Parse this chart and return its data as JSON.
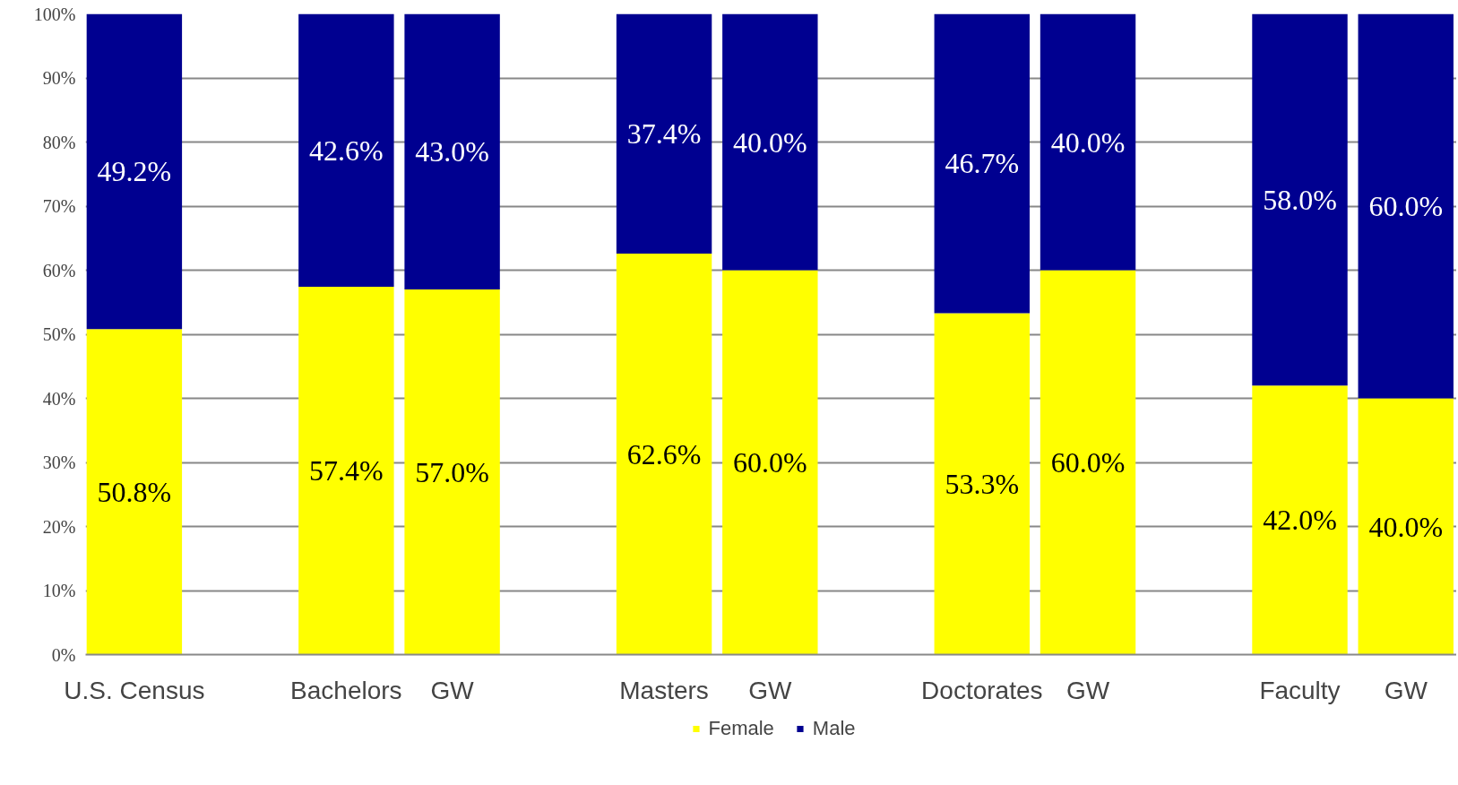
{
  "chart_data": {
    "type": "bar",
    "stacked": true,
    "categories": [
      "U.S. Census",
      null,
      "Bachelors",
      "GW",
      null,
      "Masters",
      "GW",
      null,
      "Doctorates",
      "GW",
      null,
      "Faculty",
      "GW"
    ],
    "series": [
      {
        "name": "Female",
        "color": "#ffff00",
        "values": [
          50.8,
          null,
          57.4,
          57.0,
          null,
          62.6,
          60.0,
          null,
          53.3,
          60.0,
          null,
          42.0,
          40.0
        ],
        "value_labels": [
          "50.8%",
          null,
          "57.4%",
          "57.0%",
          null,
          "62.6%",
          "60.0%",
          null,
          "53.3%",
          "60.0%",
          null,
          "42.0%",
          "40.0%"
        ]
      },
      {
        "name": "Male",
        "color": "#000090",
        "values": [
          49.2,
          null,
          42.6,
          43.0,
          null,
          37.4,
          40.0,
          null,
          46.7,
          40.0,
          null,
          58.0,
          60.0
        ],
        "value_labels": [
          "49.2%",
          null,
          "42.6%",
          "43.0%",
          null,
          "37.4%",
          "40.0%",
          null,
          "46.7%",
          "40.0%",
          null,
          "58.0%",
          "60.0%"
        ]
      }
    ],
    "ylim": [
      0,
      100
    ],
    "yticks": [
      {
        "value": 0,
        "label": "0%"
      },
      {
        "value": 10,
        "label": "10%"
      },
      {
        "value": 20,
        "label": "20%"
      },
      {
        "value": 30,
        "label": "30%"
      },
      {
        "value": 40,
        "label": "40%"
      },
      {
        "value": 50,
        "label": "50%"
      },
      {
        "value": 60,
        "label": "60%"
      },
      {
        "value": 70,
        "label": "70%"
      },
      {
        "value": 80,
        "label": "80%"
      },
      {
        "value": 90,
        "label": "90%"
      },
      {
        "value": 100,
        "label": "100%"
      }
    ],
    "grid": "y",
    "legend": "bottom"
  }
}
